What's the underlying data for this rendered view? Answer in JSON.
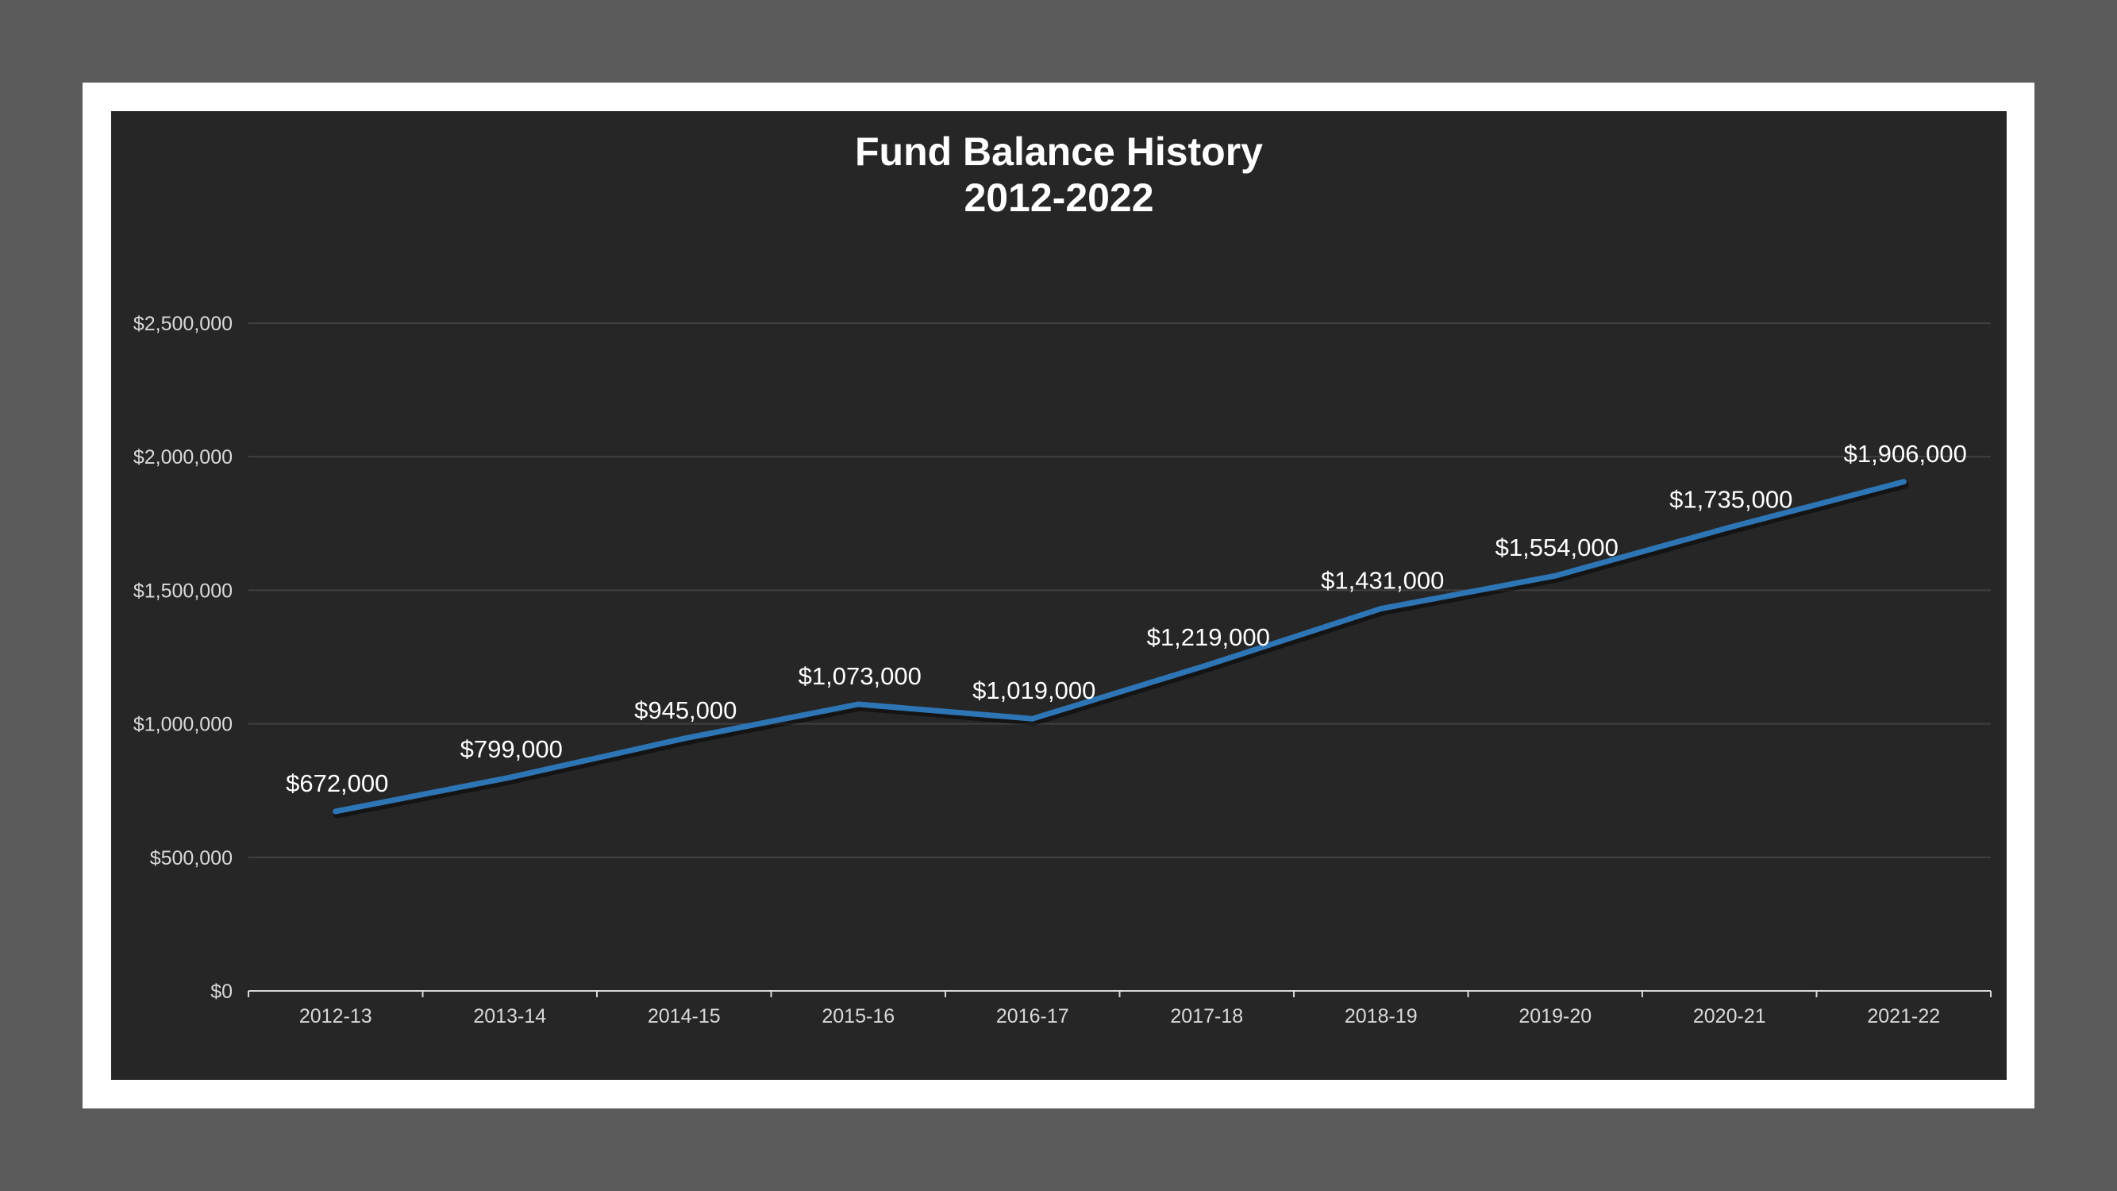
{
  "chart_data": {
    "type": "line",
    "title_lines": [
      "Fund Balance History",
      "2012-2022"
    ],
    "categories": [
      "2012-13",
      "2013-14",
      "2014-15",
      "2015-16",
      "2016-17",
      "2017-18",
      "2018-19",
      "2019-20",
      "2020-21",
      "2021-22"
    ],
    "series": [
      {
        "values": [
          672000,
          799000,
          945000,
          1073000,
          1019000,
          1219000,
          1431000,
          1554000,
          1735000,
          1906000
        ],
        "data_labels": [
          "$672,000",
          "$799,000",
          "$945,000",
          "$1,073,000",
          "$1,019,000",
          "$1,219,000",
          "$1,431,000",
          "$1,554,000",
          "$1,735,000",
          "$1,906,000"
        ],
        "color": "#2e75b6"
      }
    ],
    "y_ticks": [
      0,
      500000,
      1000000,
      1500000,
      2000000,
      2500000
    ],
    "y_tick_labels": [
      "$0",
      "$500,000",
      "$1,000,000",
      "$1,500,000",
      "$2,000,000",
      "$2,500,000"
    ],
    "ylim": [
      0,
      2500000
    ],
    "xlabel": "",
    "ylabel": "",
    "grid": true,
    "legend": "none"
  },
  "colors": {
    "outer_background": "#5b5b5b",
    "frame": "#ffffff",
    "plot_background": "#262626",
    "gridline": "#404040",
    "axis": "#d9d9d9",
    "text": "#ffffff",
    "line": "#2e75b6"
  }
}
